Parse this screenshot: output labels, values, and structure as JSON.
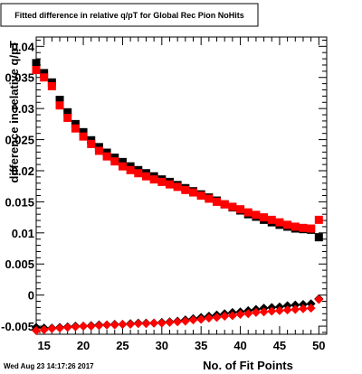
{
  "title": "Fitted difference in relative q/pT for Global Rec Pion NoHits",
  "timestamp": "Wed Aug 23 14:17:26 2017",
  "colors": {
    "series_black": "#000000",
    "series_red": "#ff0000",
    "frame": "#000000",
    "background": "#ffffff"
  },
  "chart_data": {
    "type": "scatter",
    "title": "Fitted difference in relative q/pT for Global Rec Pion NoHits",
    "xlabel": "No. of Fit Points",
    "ylabel": "difference in relative q/pT",
    "xlim": [
      14,
      51
    ],
    "ylim": [
      -0.0063,
      0.0415
    ],
    "grid": false,
    "legend": "none",
    "x_ticks": [
      "15",
      "20",
      "25",
      "30",
      "35",
      "40",
      "45",
      "50"
    ],
    "y_ticks": [
      "-0.005",
      "0",
      "0.005",
      "0.01",
      "0.015",
      "0.02",
      "0.025",
      "0.03",
      "0.035",
      "0.04"
    ],
    "series": [
      {
        "color": "#000000",
        "marker": "square",
        "x": [
          14,
          15,
          16,
          17,
          18,
          19,
          20,
          21,
          22,
          23,
          24,
          25,
          26,
          27,
          28,
          29,
          30,
          31,
          32,
          33,
          34,
          35,
          36,
          37,
          38,
          39,
          40,
          41,
          42,
          43,
          44,
          45,
          46,
          47,
          48,
          49,
          50
        ],
        "y": [
          0.0373,
          0.0357,
          0.0342,
          0.0314,
          0.0294,
          0.0275,
          0.0262,
          0.0249,
          0.0238,
          0.0229,
          0.0221,
          0.0214,
          0.0207,
          0.0201,
          0.0196,
          0.0191,
          0.0186,
          0.0182,
          0.0177,
          0.0172,
          0.0167,
          0.0162,
          0.0157,
          0.0152,
          0.0146,
          0.0141,
          0.0136,
          0.013,
          0.0126,
          0.0121,
          0.0117,
          0.0113,
          0.011,
          0.0107,
          0.0106,
          0.0105,
          0.0093
        ]
      },
      {
        "color": "#ff0000",
        "marker": "square",
        "x": [
          14,
          15,
          16,
          17,
          18,
          19,
          20,
          21,
          22,
          23,
          24,
          25,
          26,
          27,
          28,
          29,
          30,
          31,
          32,
          33,
          34,
          35,
          36,
          37,
          38,
          39,
          40,
          41,
          42,
          43,
          44,
          45,
          46,
          47,
          48,
          49,
          50
        ],
        "y": [
          0.0362,
          0.035,
          0.0336,
          0.0305,
          0.0285,
          0.0268,
          0.0255,
          0.0243,
          0.0232,
          0.0223,
          0.0215,
          0.0207,
          0.0201,
          0.0196,
          0.0191,
          0.0186,
          0.0182,
          0.0178,
          0.0174,
          0.0169,
          0.0165,
          0.016,
          0.0155,
          0.015,
          0.0146,
          0.0142,
          0.0138,
          0.0133,
          0.0129,
          0.0125,
          0.0121,
          0.0117,
          0.0113,
          0.011,
          0.0108,
          0.0107,
          0.0121
        ]
      },
      {
        "color": "#000000",
        "marker": "diamond",
        "x": [
          14,
          15,
          16,
          17,
          18,
          19,
          20,
          21,
          22,
          23,
          24,
          25,
          26,
          27,
          28,
          29,
          30,
          31,
          32,
          33,
          34,
          35,
          36,
          37,
          38,
          39,
          40,
          41,
          42,
          43,
          44,
          45,
          46,
          47,
          48,
          49,
          50
        ],
        "y": [
          -0.0052,
          -0.0053,
          -0.0053,
          -0.0052,
          -0.0051,
          -0.005,
          -0.005,
          -0.0049,
          -0.0048,
          -0.0048,
          -0.0047,
          -0.0047,
          -0.0046,
          -0.0045,
          -0.0045,
          -0.0045,
          -0.0044,
          -0.0043,
          -0.0042,
          -0.004,
          -0.0038,
          -0.0036,
          -0.0034,
          -0.0032,
          -0.003,
          -0.0028,
          -0.0027,
          -0.0025,
          -0.0023,
          -0.0021,
          -0.002,
          -0.0019,
          -0.0017,
          -0.0016,
          -0.0015,
          -0.0014,
          -0.0006
        ]
      },
      {
        "color": "#ff0000",
        "marker": "diamond",
        "x": [
          14,
          15,
          16,
          17,
          18,
          19,
          20,
          21,
          22,
          23,
          24,
          25,
          26,
          27,
          28,
          29,
          30,
          31,
          32,
          33,
          34,
          35,
          36,
          37,
          38,
          39,
          40,
          41,
          42,
          43,
          44,
          45,
          46,
          47,
          48,
          49,
          50
        ],
        "y": [
          -0.0057,
          -0.0056,
          -0.0054,
          -0.0053,
          -0.0052,
          -0.0051,
          -0.005,
          -0.005,
          -0.0049,
          -0.0048,
          -0.0048,
          -0.0047,
          -0.0047,
          -0.0046,
          -0.0046,
          -0.0045,
          -0.0045,
          -0.0044,
          -0.0043,
          -0.0042,
          -0.004,
          -0.0039,
          -0.0037,
          -0.0036,
          -0.0034,
          -0.0033,
          -0.0031,
          -0.003,
          -0.0028,
          -0.0027,
          -0.0026,
          -0.0025,
          -0.0024,
          -0.0023,
          -0.0022,
          -0.0021,
          -0.0007
        ]
      }
    ]
  }
}
